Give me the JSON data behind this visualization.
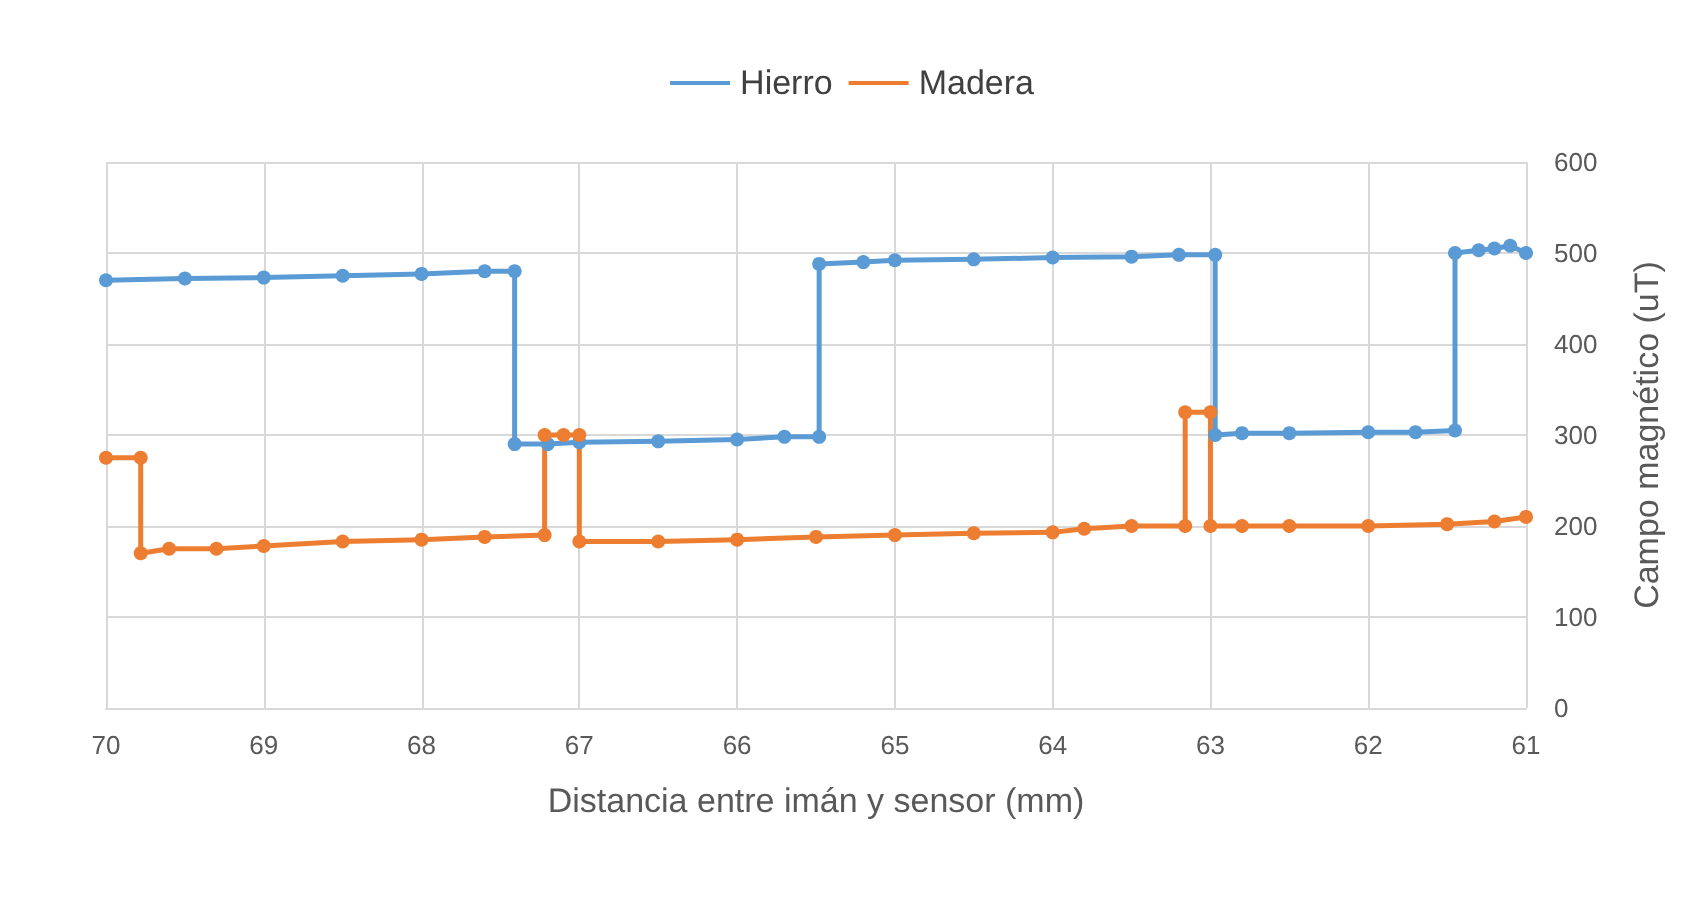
{
  "chart_data": {
    "type": "line",
    "xlabel": "Distancia entre imán y sensor (mm)",
    "ylabel": "Campo magnético (uT)",
    "xlim": [
      70,
      61
    ],
    "xticks": [
      70,
      69,
      68,
      67,
      66,
      65,
      64,
      63,
      62,
      61
    ],
    "ylim": [
      0,
      600
    ],
    "yticks": [
      0,
      100,
      200,
      300,
      400,
      500,
      600
    ],
    "grid": true,
    "legend": "top",
    "marker": "circle",
    "line_style": "solid",
    "series": [
      {
        "name": "Hierro",
        "color": "#5b9bd5",
        "x": [
          70,
          69.5,
          69,
          68.5,
          68,
          67.6,
          67.41,
          67.41,
          67.2,
          67,
          66.5,
          66,
          65.7,
          65.48,
          65.48,
          65.2,
          65,
          64.5,
          64,
          63.5,
          63.2,
          62.97,
          62.97,
          62.8,
          62.5,
          62,
          61.7,
          61.45,
          61.45,
          61.3,
          61.2,
          61.1,
          61
        ],
        "values": [
          470,
          472,
          473,
          475,
          477,
          480,
          480,
          290,
          290,
          292,
          293,
          295,
          298,
          298,
          488,
          490,
          492,
          493,
          495,
          496,
          498,
          498,
          300,
          302,
          302,
          303,
          303,
          305,
          500,
          503,
          505,
          508,
          500
        ]
      },
      {
        "name": "Madera",
        "color": "#ed7d31",
        "x": [
          70,
          69.78,
          69.78,
          69.6,
          69.3,
          69,
          68.5,
          68,
          67.6,
          67.22,
          67.22,
          67.1,
          67,
          67,
          66.5,
          66,
          65.5,
          65,
          64.5,
          64,
          63.8,
          63.5,
          63.16,
          63.16,
          63,
          63,
          62.8,
          62.5,
          62,
          61.5,
          61.2,
          61
        ],
        "values": [
          275,
          275,
          170,
          175,
          175,
          178,
          183,
          185,
          188,
          190,
          300,
          300,
          300,
          183,
          183,
          185,
          188,
          190,
          192,
          193,
          197,
          200,
          200,
          325,
          325,
          200,
          200,
          200,
          200,
          202,
          205,
          210
        ]
      }
    ]
  }
}
